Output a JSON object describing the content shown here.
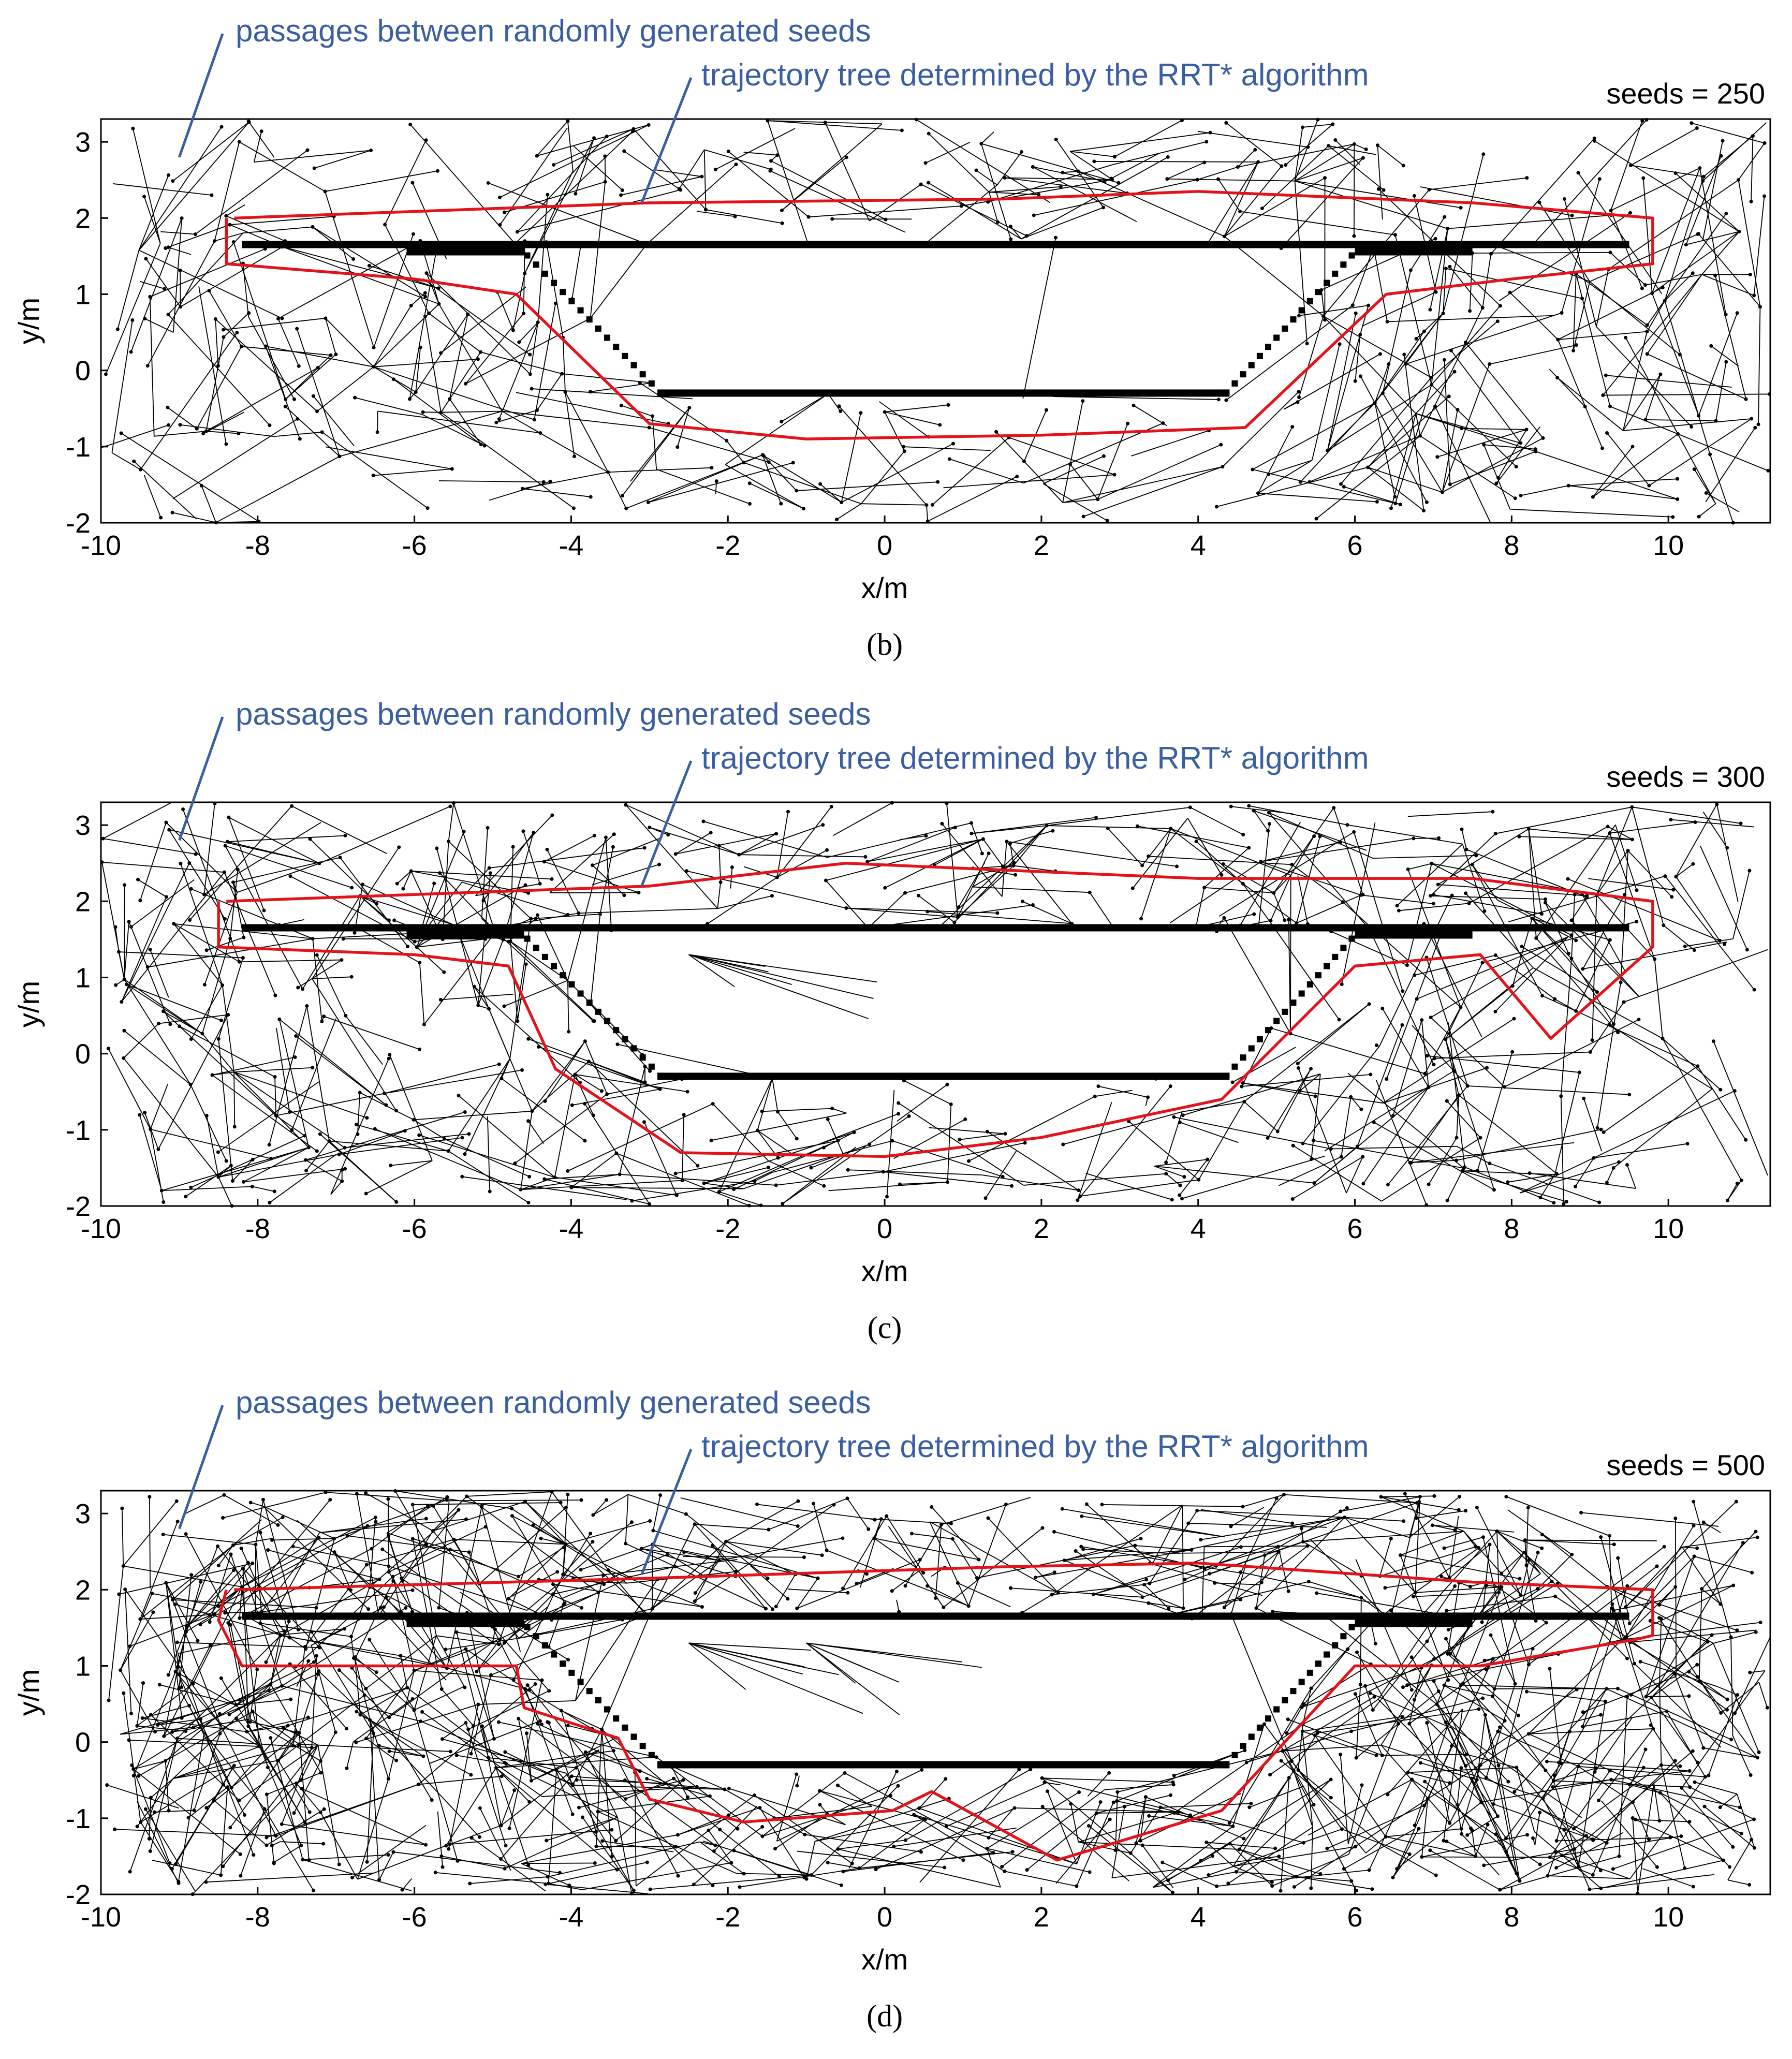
{
  "figure": {
    "description_labels": {
      "passages_label": "passages between randomly generated seeds",
      "tree_label": "trajectory tree determined by the RRT* algorithm"
    }
  },
  "colors": {
    "annotation": "#3a5fa0",
    "path": "#e3121b",
    "edges": "#000000",
    "obstacle": "#000000"
  },
  "chart_data": [
    {
      "type": "scatter",
      "panel_label": "b",
      "caption": "(b)",
      "seeds_label": "seeds = 250",
      "seed_count": 250,
      "xlabel": "x/m",
      "ylabel": "y/m",
      "xlim": [
        -10,
        11.3
      ],
      "ylim": [
        -2,
        3.3
      ],
      "xticks": [
        -10,
        -8,
        -6,
        -4,
        -2,
        0,
        2,
        4,
        6,
        8,
        10
      ],
      "yticks": [
        -2,
        -1,
        0,
        1,
        2,
        3
      ],
      "edge_seed": 11,
      "inner_edge_sets": 0,
      "path": [
        [
          -8.4,
          2.0
        ],
        [
          -8.4,
          1.4
        ],
        [
          -6.0,
          1.2
        ],
        [
          -4.7,
          1.0
        ],
        [
          -3.0,
          -0.7
        ],
        [
          -1.0,
          -0.9
        ],
        [
          2.0,
          -0.85
        ],
        [
          4.6,
          -0.75
        ],
        [
          6.4,
          1.0
        ],
        [
          8.0,
          1.2
        ],
        [
          9.8,
          1.4
        ],
        [
          9.8,
          2.0
        ],
        [
          7.5,
          2.2
        ],
        [
          4.0,
          2.35
        ],
        [
          1.5,
          2.25
        ],
        [
          -3.0,
          2.2
        ],
        [
          -8.3,
          2.0
        ]
      ]
    },
    {
      "type": "scatter",
      "panel_label": "c",
      "caption": "(c)",
      "seeds_label": "seeds = 300",
      "seed_count": 300,
      "xlabel": "x/m",
      "ylabel": "y/m",
      "xlim": [
        -10,
        11.3
      ],
      "ylim": [
        -2,
        3.3
      ],
      "xticks": [
        -10,
        -8,
        -6,
        -4,
        -2,
        0,
        2,
        4,
        6,
        8,
        10
      ],
      "yticks": [
        -2,
        -1,
        0,
        1,
        2,
        3
      ],
      "edge_seed": 23,
      "inner_edge_sets": 1,
      "path": [
        [
          -8.5,
          2.0
        ],
        [
          -8.5,
          1.4
        ],
        [
          -6.0,
          1.3
        ],
        [
          -4.8,
          1.15
        ],
        [
          -4.2,
          -0.2
        ],
        [
          -2.6,
          -1.3
        ],
        [
          0.0,
          -1.35
        ],
        [
          2.0,
          -1.1
        ],
        [
          4.3,
          -0.6
        ],
        [
          6.0,
          1.15
        ],
        [
          7.6,
          1.3
        ],
        [
          8.5,
          0.2
        ],
        [
          9.8,
          1.4
        ],
        [
          9.8,
          2.0
        ],
        [
          7.5,
          2.3
        ],
        [
          4.0,
          2.3
        ],
        [
          -0.5,
          2.5
        ],
        [
          -3.0,
          2.2
        ],
        [
          -8.4,
          2.0
        ]
      ]
    },
    {
      "type": "scatter",
      "panel_label": "d",
      "caption": "(d)",
      "seeds_label": "seeds = 500",
      "seed_count": 500,
      "xlabel": "x/m",
      "ylabel": "y/m",
      "xlim": [
        -10,
        11.3
      ],
      "ylim": [
        -2,
        3.3
      ],
      "xticks": [
        -10,
        -8,
        -6,
        -4,
        -2,
        0,
        2,
        4,
        6,
        8,
        10
      ],
      "yticks": [
        -2,
        -1,
        0,
        1,
        2,
        3
      ],
      "edge_seed": 37,
      "inner_edge_sets": 2,
      "path": [
        [
          -8.4,
          2.0
        ],
        [
          -8.5,
          1.6
        ],
        [
          -8.4,
          1.4
        ],
        [
          -8.2,
          1.0
        ],
        [
          -4.7,
          1.0
        ],
        [
          -4.6,
          0.45
        ],
        [
          -3.4,
          0.05
        ],
        [
          -3.0,
          -0.75
        ],
        [
          -1.8,
          -1.05
        ],
        [
          0.1,
          -0.9
        ],
        [
          0.6,
          -0.65
        ],
        [
          2.2,
          -1.55
        ],
        [
          4.3,
          -0.9
        ],
        [
          6.0,
          1.0
        ],
        [
          7.6,
          1.0
        ],
        [
          9.6,
          1.35
        ],
        [
          9.8,
          1.4
        ],
        [
          9.8,
          2.0
        ],
        [
          7.5,
          2.1
        ],
        [
          4.0,
          2.35
        ],
        [
          1.5,
          2.3
        ],
        [
          -3.0,
          2.15
        ],
        [
          -8.3,
          2.0
        ]
      ]
    }
  ]
}
